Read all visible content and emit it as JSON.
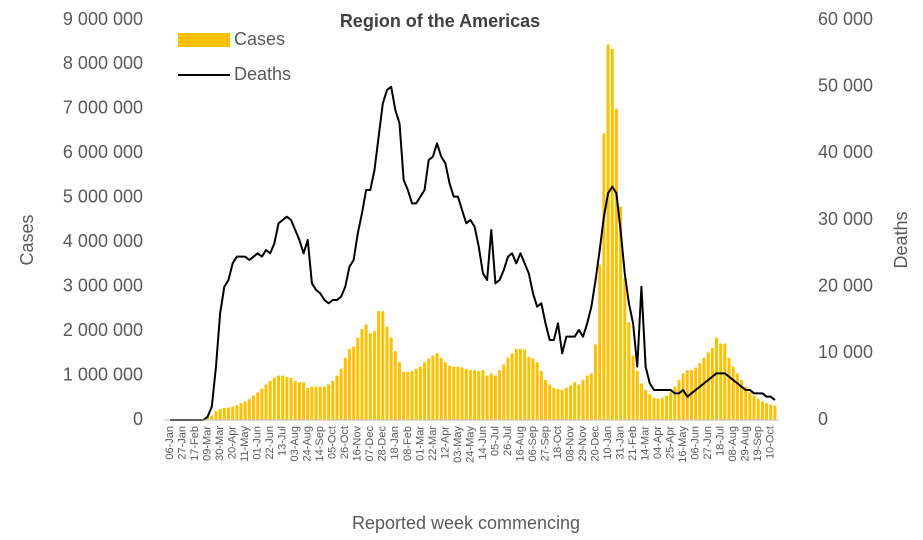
{
  "chart_data": {
    "type": "bar_line",
    "title": "Region of the Americas",
    "x_label": "Reported week commencing",
    "y_label": "Cases",
    "y2_label": "Deaths",
    "legend": "upper left",
    "categories": [
      "06-Jan",
      null,
      null,
      "27-Jan",
      null,
      null,
      "17-Feb",
      null,
      null,
      "09-Mar",
      null,
      null,
      "30-Mar",
      null,
      null,
      "20-Apr",
      null,
      null,
      "11-May",
      null,
      null,
      "01-Jun",
      null,
      null,
      "22-Jun",
      null,
      null,
      "13-Jul",
      null,
      null,
      "03-Aug",
      null,
      null,
      "24-Aug",
      null,
      null,
      "14-Sep",
      null,
      null,
      "05-Oct",
      null,
      null,
      "26-Oct",
      null,
      null,
      "16-Nov",
      null,
      null,
      "07-Dec",
      null,
      null,
      "28-Dec",
      null,
      null,
      "18-Jan",
      null,
      null,
      "08-Feb",
      null,
      null,
      "01-Mar",
      null,
      null,
      "22-Mar",
      null,
      null,
      "12-Apr",
      null,
      null,
      "03-May",
      null,
      null,
      "24-May",
      null,
      null,
      "14-Jun",
      null,
      null,
      "05-Jul",
      null,
      null,
      "26-Jul",
      null,
      null,
      "16-Aug",
      null,
      null,
      "06-Sep",
      null,
      null,
      "27-Sep",
      null,
      null,
      "18-Oct",
      null,
      null,
      "08-Nov",
      null,
      null,
      "29-Nov",
      null,
      null,
      "20-Dec",
      null,
      null,
      "10-Jan",
      null,
      null,
      "31-Jan",
      null,
      null,
      "21-Feb",
      null,
      null,
      "14-Mar",
      null,
      null,
      "04-Apr",
      null,
      null,
      "25-Apr",
      null,
      null,
      "16-May",
      null,
      null,
      "06-Jun",
      null,
      null,
      "27-Jun",
      null,
      null,
      "18-Jul",
      null,
      null,
      "08-Aug",
      null,
      null,
      "29-Aug",
      null,
      null,
      "19-Sep",
      null,
      null,
      "10-Oct",
      null
    ],
    "series": [
      {
        "name": "Cases",
        "type": "bar",
        "color": "#ffc000",
        "axis": "y",
        "values": [
          0,
          0,
          0,
          0,
          0,
          0,
          0,
          0,
          0,
          50000,
          100000,
          200000,
          250000,
          270000,
          280000,
          300000,
          330000,
          380000,
          420000,
          470000,
          550000,
          620000,
          700000,
          800000,
          880000,
          950000,
          1000000,
          1000000,
          970000,
          950000,
          880000,
          850000,
          850000,
          720000,
          750000,
          750000,
          750000,
          750000,
          800000,
          880000,
          1000000,
          1150000,
          1400000,
          1600000,
          1650000,
          1850000,
          2050000,
          2150000,
          1950000,
          2000000,
          2450000,
          2450000,
          2100000,
          1850000,
          1550000,
          1300000,
          1080000,
          1080000,
          1100000,
          1150000,
          1200000,
          1300000,
          1380000,
          1450000,
          1500000,
          1400000,
          1300000,
          1220000,
          1200000,
          1200000,
          1180000,
          1150000,
          1120000,
          1120000,
          1100000,
          1120000,
          1000000,
          1050000,
          1000000,
          1120000,
          1250000,
          1400000,
          1500000,
          1600000,
          1600000,
          1580000,
          1420000,
          1380000,
          1300000,
          1100000,
          900000,
          800000,
          720000,
          700000,
          680000,
          720000,
          780000,
          850000,
          800000,
          900000,
          1000000,
          1050000,
          1700000,
          3500000,
          6450000,
          8450000,
          8350000,
          7000000,
          4800000,
          3200000,
          2200000,
          1450000,
          1100000,
          820000,
          680000,
          580000,
          500000,
          480000,
          500000,
          550000,
          620000,
          750000,
          900000,
          1050000,
          1120000,
          1120000,
          1180000,
          1280000,
          1400000,
          1520000,
          1620000,
          1850000,
          1720000,
          1720000,
          1400000,
          1200000,
          1050000,
          900000,
          750000,
          620000,
          550000,
          480000,
          420000,
          380000,
          350000,
          320000
        ]
      },
      {
        "name": "Deaths",
        "type": "line",
        "color": "#000000",
        "axis": "y2",
        "values": [
          0,
          0,
          0,
          0,
          0,
          0,
          0,
          0,
          0,
          500,
          2000,
          8000,
          16000,
          20000,
          21000,
          23500,
          24500,
          24500,
          24500,
          24000,
          24500,
          25000,
          24500,
          25500,
          25000,
          26500,
          29500,
          30000,
          30500,
          30000,
          28500,
          27000,
          25000,
          27000,
          20500,
          19500,
          19000,
          18000,
          17500,
          18000,
          18000,
          18500,
          20000,
          23000,
          24000,
          28000,
          31000,
          34500,
          34500,
          37500,
          42500,
          47500,
          49500,
          50000,
          46500,
          44500,
          36000,
          34500,
          32500,
          32500,
          33500,
          34500,
          39000,
          39500,
          41500,
          39500,
          38500,
          35500,
          33500,
          33500,
          31500,
          29500,
          30000,
          29000,
          26000,
          22000,
          21000,
          28500,
          20500,
          21000,
          22500,
          24500,
          25000,
          23500,
          25000,
          23500,
          22000,
          19000,
          17000,
          17500,
          14500,
          12000,
          12000,
          14500,
          10000,
          12500,
          12500,
          12500,
          13500,
          12500,
          14500,
          17000,
          21000,
          25500,
          30500,
          34000,
          35000,
          34000,
          28500,
          22000,
          17500,
          14500,
          8000,
          20000,
          8000,
          5500,
          4500,
          4500,
          4500,
          4500,
          4500,
          4000,
          4000,
          4500,
          3500,
          4000,
          4500,
          5000,
          5500,
          6000,
          6500,
          7000,
          7000,
          7000,
          6500,
          6000,
          5500,
          5000,
          4500,
          4500,
          4000,
          4000,
          4000,
          3500,
          3500,
          3000
        ]
      }
    ],
    "ylim": [
      0,
      9000000
    ],
    "yticks": [
      0,
      {
        "value": 1000000,
        "label": "1 000 000"
      },
      {
        "value": 2000000,
        "label": "2 000 000"
      },
      {
        "value": 3000000,
        "label": "3 000 000"
      },
      {
        "value": 4000000,
        "label": "4 000 000"
      },
      {
        "value": 5000000,
        "label": "5 000 000"
      },
      {
        "value": 6000000,
        "label": "6 000 000"
      },
      {
        "value": 7000000,
        "label": "7 000 000"
      },
      {
        "value": 8000000,
        "label": "8 000 000"
      },
      {
        "value": 9000000,
        "label": "9 000 000"
      }
    ],
    "y2lim": [
      0,
      60000
    ],
    "y2ticks": [
      0,
      {
        "value": 10000,
        "label": "10 000"
      },
      {
        "value": 20000,
        "label": "20 000"
      },
      {
        "value": 30000,
        "label": "30 000"
      },
      {
        "value": 40000,
        "label": "40 000"
      },
      {
        "value": 50000,
        "label": "50 000"
      },
      {
        "value": 60000,
        "label": "60 000"
      }
    ],
    "grid": false
  }
}
